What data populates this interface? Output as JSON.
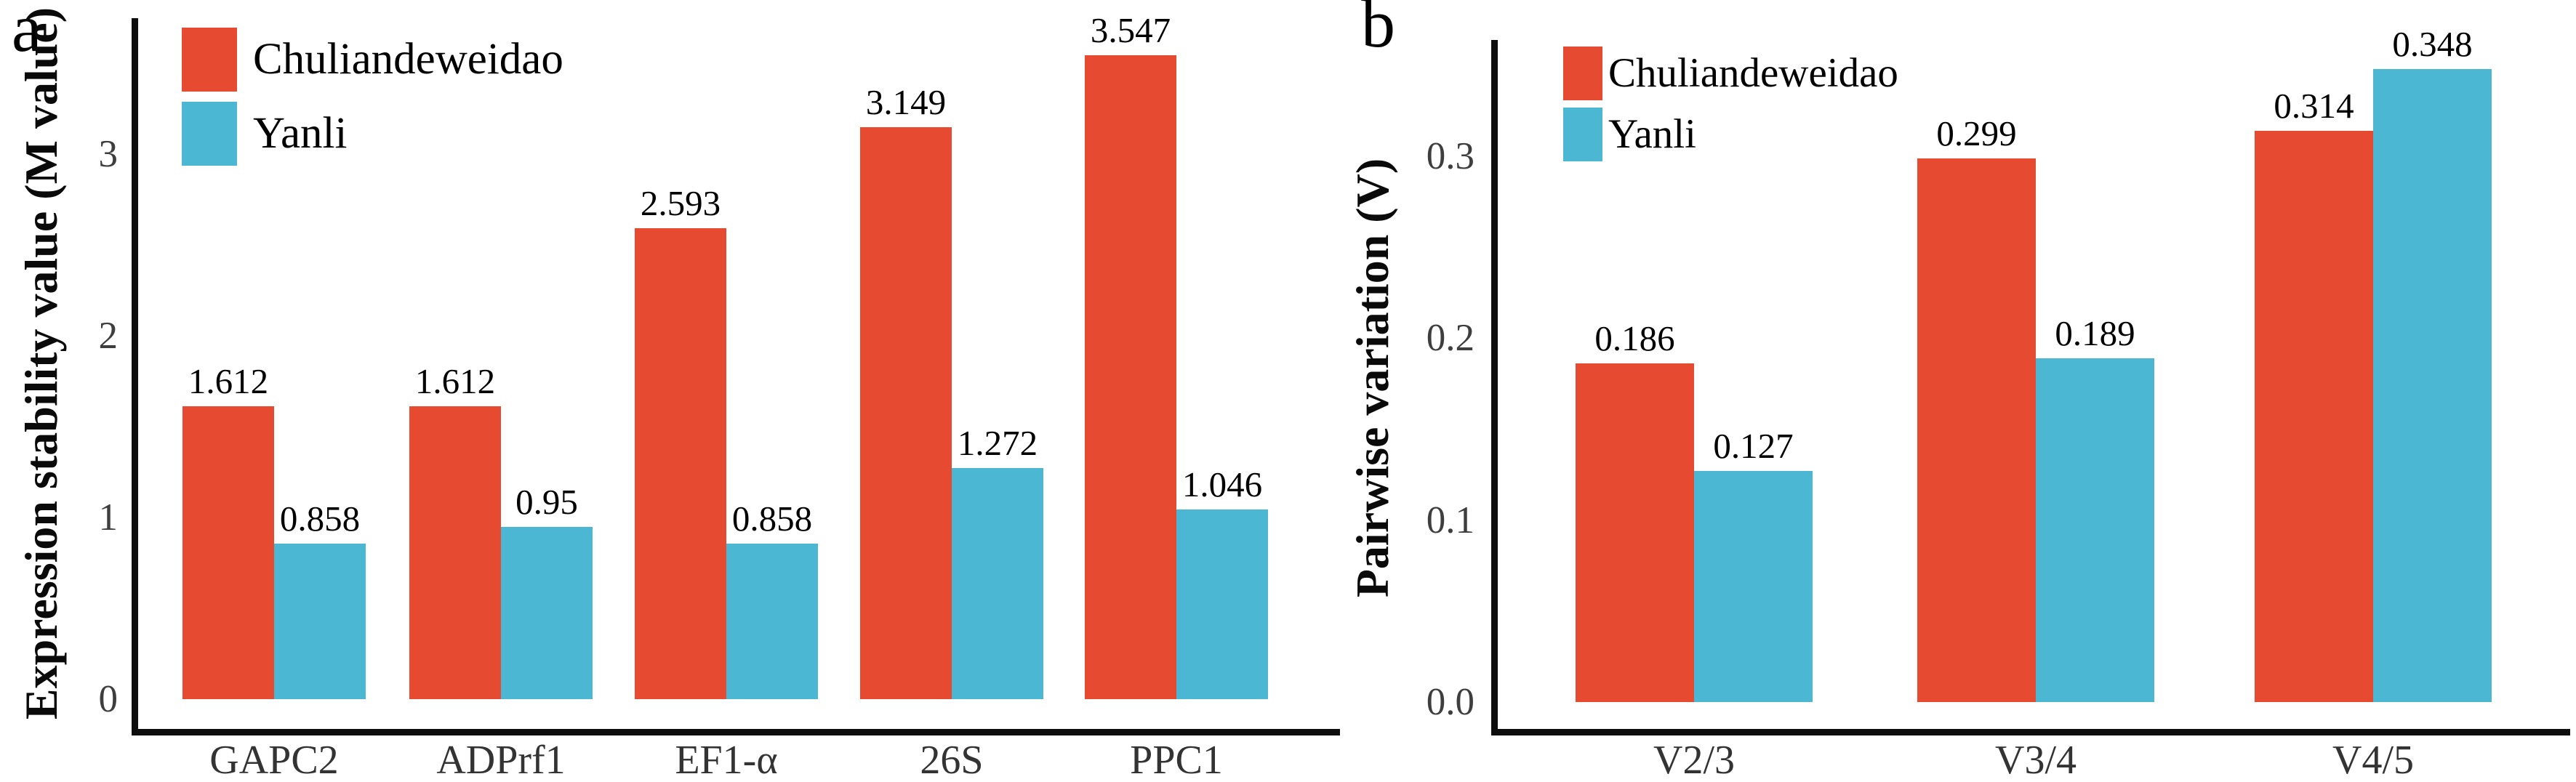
{
  "figure": {
    "background": "#ffffff"
  },
  "colors": {
    "series_red": "#E64B32",
    "series_blue": "#4BB7D3",
    "axis_line": "#0d0d0d",
    "tick_text": "#3e3e3e",
    "category_text": "#333333",
    "value_text": "#000000"
  },
  "chart_data": [
    {
      "type": "bar",
      "panel_label": "a",
      "ylabel": "Expression stability value (M value)",
      "categories": [
        "GAPC2",
        "ADPrf1",
        "EF1-α",
        "26S",
        "PPC1"
      ],
      "series": [
        {
          "name": "Chuliandeweidao",
          "color": "#E64B32",
          "values": [
            1.612,
            1.612,
            2.593,
            3.149,
            3.547
          ]
        },
        {
          "name": "Yanli",
          "color": "#4BB7D3",
          "values": [
            0.858,
            0.95,
            0.858,
            1.272,
            1.046
          ]
        }
      ],
      "yticks": [
        0,
        1,
        2,
        3
      ],
      "ytick_labels": [
        "0",
        "1",
        "2",
        "3"
      ],
      "ylim": [
        0,
        3.75
      ],
      "grid": false,
      "legend_position": "top-left",
      "value_labels_shown": true
    },
    {
      "type": "bar",
      "panel_label": "b",
      "ylabel": "Pairwise variation (V)",
      "categories": [
        "V2/3",
        "V3/4",
        "V4/5"
      ],
      "series": [
        {
          "name": "Chuliandeweidao",
          "color": "#E64B32",
          "values": [
            0.186,
            0.299,
            0.314
          ]
        },
        {
          "name": "Yanli",
          "color": "#4BB7D3",
          "values": [
            0.127,
            0.189,
            0.348
          ]
        }
      ],
      "yticks": [
        0,
        0.1,
        0.2,
        0.3
      ],
      "ytick_labels": [
        "0.0",
        "0.1",
        "0.2",
        "0.3"
      ],
      "ylim": [
        0,
        0.364
      ],
      "grid": false,
      "legend_position": "top-left",
      "value_labels_shown": true
    }
  ]
}
